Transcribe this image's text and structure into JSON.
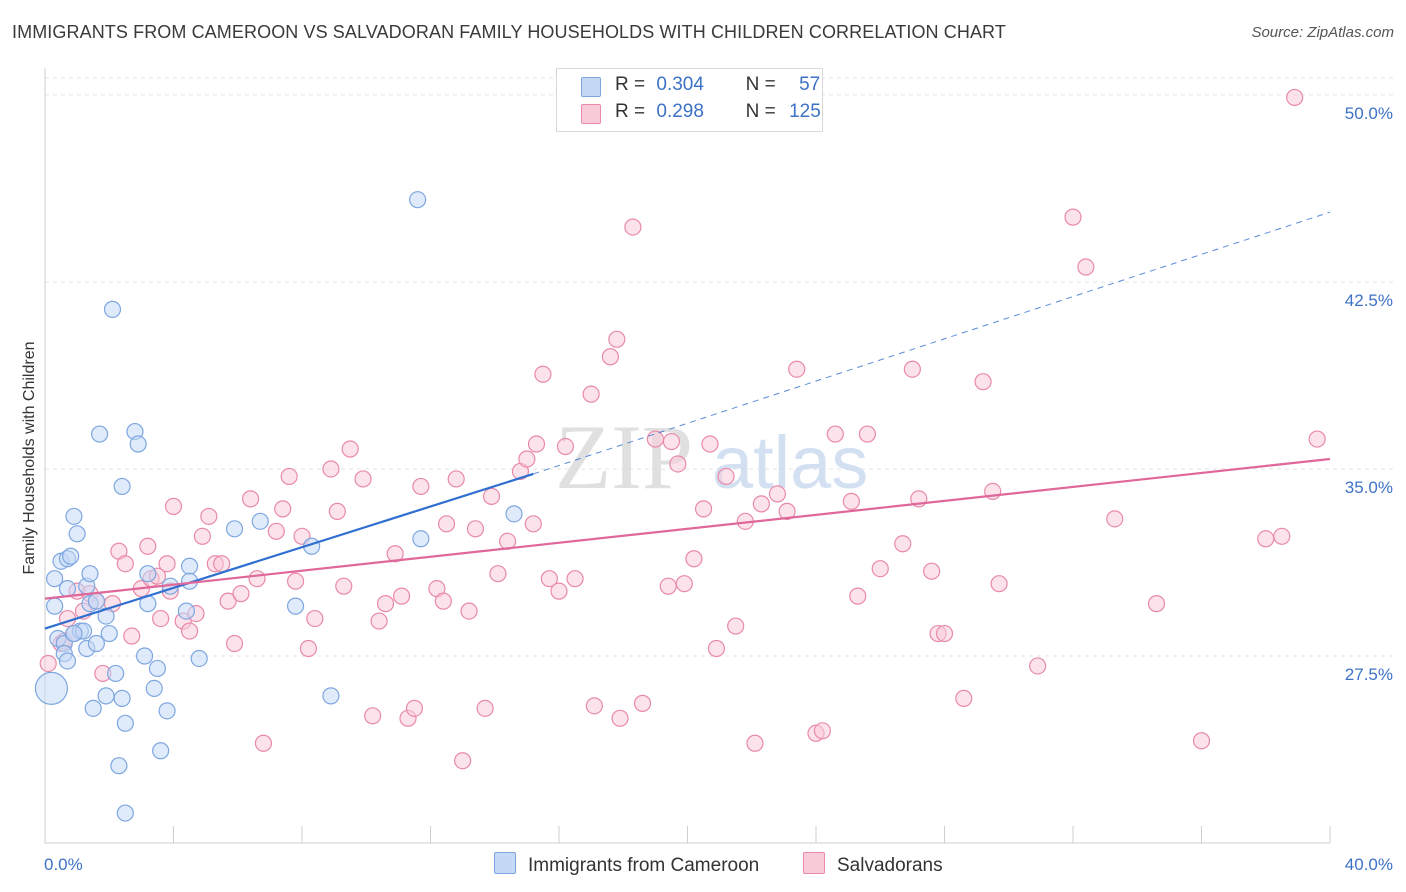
{
  "title": "IMMIGRANTS FROM CAMEROON VS SALVADORAN FAMILY HOUSEHOLDS WITH CHILDREN CORRELATION CHART",
  "source": "Source: ZipAtlas.com",
  "watermark": {
    "zip": "ZIP",
    "atlas": "atlas"
  },
  "legend": {
    "r_label": "R =",
    "n_label": "N =",
    "rows": [
      {
        "r": "0.304",
        "n": "57",
        "color": "#7ea7e0",
        "fill": "#c5d8f5"
      },
      {
        "r": "0.298",
        "n": "125",
        "color": "#e88aa8",
        "fill": "#f9cad8"
      }
    ]
  },
  "bottom_legend": [
    {
      "label": "Immigrants from Cameroon",
      "color": "#7ea7e0",
      "fill": "#c5d8f5"
    },
    {
      "label": "Salvadorans",
      "color": "#e88aa8",
      "fill": "#f9cad8"
    }
  ],
  "chart_data": {
    "type": "scatter",
    "title": "IMMIGRANTS FROM CAMEROON VS SALVADORAN FAMILY HOUSEHOLDS WITH CHILDREN CORRELATION CHART",
    "xlabel": "",
    "ylabel": "Family Households with Children",
    "xlim": [
      0,
      40
    ],
    "ylim": [
      20,
      51
    ],
    "x_ticks": [
      "0.0%",
      "40.0%"
    ],
    "y_ticks": [
      {
        "value": 27.5,
        "label": "27.5%"
      },
      {
        "value": 35.0,
        "label": "35.0%"
      },
      {
        "value": 42.5,
        "label": "42.5%"
      },
      {
        "value": 50.0,
        "label": "50.0%"
      }
    ],
    "grid": "horizontal dashed",
    "series": [
      {
        "name": "Immigrants from Cameroon",
        "color": "#7ea7e0",
        "fill": "#c5d8f5",
        "line_color": "#2f6fd0",
        "trend": {
          "x_start": 0.0,
          "y_start": 28.6,
          "x_solid_end": 15.2,
          "y_solid_end": 34.8,
          "x_end": 40.0,
          "y_end": 45.3
        },
        "points": [
          [
            0.2,
            26.2
          ],
          [
            0.3,
            30.6
          ],
          [
            0.3,
            29.5
          ],
          [
            0.4,
            28.2
          ],
          [
            0.5,
            31.3
          ],
          [
            0.6,
            28.0
          ],
          [
            0.6,
            27.6
          ],
          [
            0.7,
            31.4
          ],
          [
            0.7,
            30.2
          ],
          [
            0.7,
            27.3
          ],
          [
            0.8,
            31.5
          ],
          [
            0.9,
            33.1
          ],
          [
            0.9,
            28.4
          ],
          [
            1.0,
            32.4
          ],
          [
            1.1,
            28.5
          ],
          [
            1.2,
            28.5
          ],
          [
            1.3,
            30.3
          ],
          [
            1.3,
            27.8
          ],
          [
            1.4,
            30.8
          ],
          [
            1.4,
            29.6
          ],
          [
            1.5,
            25.4
          ],
          [
            1.6,
            29.7
          ],
          [
            1.6,
            28.0
          ],
          [
            1.7,
            36.4
          ],
          [
            1.9,
            29.1
          ],
          [
            1.9,
            25.9
          ],
          [
            2.0,
            28.4
          ],
          [
            2.1,
            41.4
          ],
          [
            2.2,
            26.8
          ],
          [
            2.3,
            23.1
          ],
          [
            2.4,
            25.8
          ],
          [
            2.4,
            34.3
          ],
          [
            2.5,
            24.8
          ],
          [
            2.5,
            21.2
          ],
          [
            2.8,
            36.5
          ],
          [
            2.9,
            36.0
          ],
          [
            3.1,
            27.5
          ],
          [
            3.2,
            30.8
          ],
          [
            3.2,
            29.6
          ],
          [
            3.4,
            26.2
          ],
          [
            3.5,
            27.0
          ],
          [
            3.6,
            23.7
          ],
          [
            3.8,
            25.3
          ],
          [
            3.9,
            30.3
          ],
          [
            4.4,
            29.3
          ],
          [
            4.5,
            31.1
          ],
          [
            4.5,
            30.5
          ],
          [
            4.8,
            27.4
          ],
          [
            5.9,
            32.6
          ],
          [
            6.7,
            32.9
          ],
          [
            7.8,
            29.5
          ],
          [
            8.3,
            31.9
          ],
          [
            8.9,
            25.9
          ],
          [
            11.7,
            32.2
          ],
          [
            11.6,
            45.8
          ],
          [
            14.6,
            33.2
          ],
          [
            0.9,
            28.4
          ]
        ]
      },
      {
        "name": "Salvadorans",
        "color": "#e88aa8",
        "fill": "#f9cad8",
        "line_color": "#e0679a",
        "trend": {
          "x_start": 0.0,
          "y_start": 29.8,
          "x_end": 40.0,
          "y_end": 35.4
        },
        "points": [
          [
            0.1,
            27.2
          ],
          [
            0.5,
            28.0
          ],
          [
            0.6,
            28.1
          ],
          [
            0.7,
            29.0
          ],
          [
            0.9,
            28.4
          ],
          [
            1.0,
            30.1
          ],
          [
            1.2,
            29.3
          ],
          [
            1.4,
            30.0
          ],
          [
            1.6,
            29.7
          ],
          [
            1.8,
            26.8
          ],
          [
            2.1,
            29.6
          ],
          [
            2.3,
            31.7
          ],
          [
            2.5,
            31.2
          ],
          [
            2.7,
            28.3
          ],
          [
            3.0,
            30.2
          ],
          [
            3.2,
            31.9
          ],
          [
            3.3,
            30.6
          ],
          [
            3.5,
            30.7
          ],
          [
            3.6,
            29.0
          ],
          [
            3.8,
            31.2
          ],
          [
            3.9,
            30.1
          ],
          [
            4.0,
            33.5
          ],
          [
            4.3,
            28.9
          ],
          [
            4.5,
            28.5
          ],
          [
            4.7,
            29.2
          ],
          [
            4.9,
            32.3
          ],
          [
            5.1,
            33.1
          ],
          [
            5.3,
            31.2
          ],
          [
            5.5,
            31.2
          ],
          [
            5.7,
            29.7
          ],
          [
            5.9,
            28.0
          ],
          [
            6.1,
            30.0
          ],
          [
            6.4,
            33.8
          ],
          [
            6.6,
            30.6
          ],
          [
            6.8,
            24.0
          ],
          [
            7.2,
            32.5
          ],
          [
            7.4,
            33.4
          ],
          [
            7.6,
            34.7
          ],
          [
            7.8,
            30.5
          ],
          [
            8.0,
            32.3
          ],
          [
            8.2,
            27.8
          ],
          [
            8.4,
            29.0
          ],
          [
            8.9,
            35.0
          ],
          [
            9.1,
            33.3
          ],
          [
            9.3,
            30.3
          ],
          [
            9.5,
            35.8
          ],
          [
            9.9,
            34.6
          ],
          [
            10.2,
            25.1
          ],
          [
            10.4,
            28.9
          ],
          [
            10.6,
            29.6
          ],
          [
            10.9,
            31.6
          ],
          [
            11.1,
            29.9
          ],
          [
            11.3,
            25.0
          ],
          [
            11.5,
            25.4
          ],
          [
            11.7,
            34.3
          ],
          [
            12.2,
            30.2
          ],
          [
            12.4,
            29.7
          ],
          [
            12.5,
            32.8
          ],
          [
            12.8,
            34.6
          ],
          [
            13.0,
            23.3
          ],
          [
            13.2,
            29.3
          ],
          [
            13.4,
            32.6
          ],
          [
            13.7,
            25.4
          ],
          [
            13.9,
            33.9
          ],
          [
            14.1,
            30.8
          ],
          [
            14.4,
            32.1
          ],
          [
            14.8,
            34.9
          ],
          [
            15.0,
            35.4
          ],
          [
            15.2,
            32.8
          ],
          [
            15.3,
            36.0
          ],
          [
            15.5,
            38.8
          ],
          [
            15.7,
            30.6
          ],
          [
            16.0,
            30.1
          ],
          [
            16.2,
            35.9
          ],
          [
            16.5,
            30.6
          ],
          [
            17.0,
            38.0
          ],
          [
            17.1,
            25.5
          ],
          [
            17.6,
            39.5
          ],
          [
            17.8,
            40.2
          ],
          [
            17.9,
            25.0
          ],
          [
            18.3,
            44.7
          ],
          [
            18.6,
            25.6
          ],
          [
            19.0,
            36.2
          ],
          [
            19.4,
            30.3
          ],
          [
            19.5,
            36.1
          ],
          [
            19.7,
            35.2
          ],
          [
            19.9,
            30.4
          ],
          [
            20.2,
            31.4
          ],
          [
            20.5,
            33.4
          ],
          [
            20.7,
            36.0
          ],
          [
            20.9,
            27.8
          ],
          [
            21.2,
            34.7
          ],
          [
            21.5,
            28.7
          ],
          [
            21.8,
            32.9
          ],
          [
            22.1,
            24.0
          ],
          [
            22.3,
            33.6
          ],
          [
            22.8,
            34.0
          ],
          [
            23.1,
            33.3
          ],
          [
            23.4,
            39.0
          ],
          [
            24.0,
            24.4
          ],
          [
            24.2,
            24.5
          ],
          [
            24.6,
            36.4
          ],
          [
            25.1,
            33.7
          ],
          [
            25.3,
            29.9
          ],
          [
            25.6,
            36.4
          ],
          [
            26.0,
            31.0
          ],
          [
            26.7,
            32.0
          ],
          [
            27.0,
            39.0
          ],
          [
            27.2,
            33.8
          ],
          [
            27.6,
            30.9
          ],
          [
            27.8,
            28.4
          ],
          [
            28.0,
            28.4
          ],
          [
            28.6,
            25.8
          ],
          [
            29.2,
            38.5
          ],
          [
            29.5,
            34.1
          ],
          [
            29.7,
            30.4
          ],
          [
            30.9,
            27.1
          ],
          [
            32.0,
            45.1
          ],
          [
            32.4,
            43.1
          ],
          [
            33.3,
            33.0
          ],
          [
            34.6,
            29.6
          ],
          [
            36.0,
            24.1
          ],
          [
            38.0,
            32.2
          ],
          [
            38.5,
            32.3
          ],
          [
            38.9,
            49.9
          ],
          [
            39.6,
            36.2
          ]
        ]
      }
    ]
  }
}
